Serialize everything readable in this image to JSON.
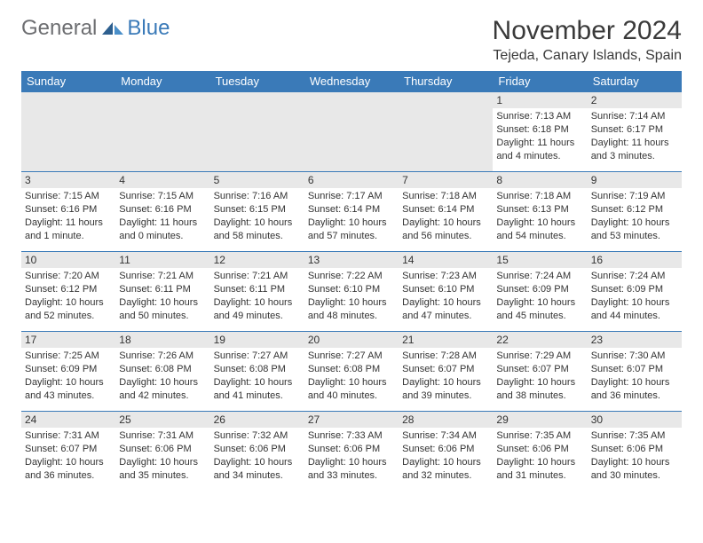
{
  "logo": {
    "general": "General",
    "blue": "Blue"
  },
  "header": {
    "month": "November 2024",
    "location": "Tejeda, Canary Islands, Spain"
  },
  "colors": {
    "accent": "#3a7ab8",
    "header_text": "#ffffff",
    "daynum_bg": "#e8e8e8",
    "text": "#333333",
    "logo_gray": "#6d6e71"
  },
  "dayNames": [
    "Sunday",
    "Monday",
    "Tuesday",
    "Wednesday",
    "Thursday",
    "Friday",
    "Saturday"
  ],
  "weeks": [
    [
      null,
      null,
      null,
      null,
      null,
      {
        "n": "1",
        "sr": "7:13 AM",
        "ss": "6:18 PM",
        "dl": "11 hours and 4 minutes."
      },
      {
        "n": "2",
        "sr": "7:14 AM",
        "ss": "6:17 PM",
        "dl": "11 hours and 3 minutes."
      }
    ],
    [
      {
        "n": "3",
        "sr": "7:15 AM",
        "ss": "6:16 PM",
        "dl": "11 hours and 1 minute."
      },
      {
        "n": "4",
        "sr": "7:15 AM",
        "ss": "6:16 PM",
        "dl": "11 hours and 0 minutes."
      },
      {
        "n": "5",
        "sr": "7:16 AM",
        "ss": "6:15 PM",
        "dl": "10 hours and 58 minutes."
      },
      {
        "n": "6",
        "sr": "7:17 AM",
        "ss": "6:14 PM",
        "dl": "10 hours and 57 minutes."
      },
      {
        "n": "7",
        "sr": "7:18 AM",
        "ss": "6:14 PM",
        "dl": "10 hours and 56 minutes."
      },
      {
        "n": "8",
        "sr": "7:18 AM",
        "ss": "6:13 PM",
        "dl": "10 hours and 54 minutes."
      },
      {
        "n": "9",
        "sr": "7:19 AM",
        "ss": "6:12 PM",
        "dl": "10 hours and 53 minutes."
      }
    ],
    [
      {
        "n": "10",
        "sr": "7:20 AM",
        "ss": "6:12 PM",
        "dl": "10 hours and 52 minutes."
      },
      {
        "n": "11",
        "sr": "7:21 AM",
        "ss": "6:11 PM",
        "dl": "10 hours and 50 minutes."
      },
      {
        "n": "12",
        "sr": "7:21 AM",
        "ss": "6:11 PM",
        "dl": "10 hours and 49 minutes."
      },
      {
        "n": "13",
        "sr": "7:22 AM",
        "ss": "6:10 PM",
        "dl": "10 hours and 48 minutes."
      },
      {
        "n": "14",
        "sr": "7:23 AM",
        "ss": "6:10 PM",
        "dl": "10 hours and 47 minutes."
      },
      {
        "n": "15",
        "sr": "7:24 AM",
        "ss": "6:09 PM",
        "dl": "10 hours and 45 minutes."
      },
      {
        "n": "16",
        "sr": "7:24 AM",
        "ss": "6:09 PM",
        "dl": "10 hours and 44 minutes."
      }
    ],
    [
      {
        "n": "17",
        "sr": "7:25 AM",
        "ss": "6:09 PM",
        "dl": "10 hours and 43 minutes."
      },
      {
        "n": "18",
        "sr": "7:26 AM",
        "ss": "6:08 PM",
        "dl": "10 hours and 42 minutes."
      },
      {
        "n": "19",
        "sr": "7:27 AM",
        "ss": "6:08 PM",
        "dl": "10 hours and 41 minutes."
      },
      {
        "n": "20",
        "sr": "7:27 AM",
        "ss": "6:08 PM",
        "dl": "10 hours and 40 minutes."
      },
      {
        "n": "21",
        "sr": "7:28 AM",
        "ss": "6:07 PM",
        "dl": "10 hours and 39 minutes."
      },
      {
        "n": "22",
        "sr": "7:29 AM",
        "ss": "6:07 PM",
        "dl": "10 hours and 38 minutes."
      },
      {
        "n": "23",
        "sr": "7:30 AM",
        "ss": "6:07 PM",
        "dl": "10 hours and 36 minutes."
      }
    ],
    [
      {
        "n": "24",
        "sr": "7:31 AM",
        "ss": "6:07 PM",
        "dl": "10 hours and 36 minutes."
      },
      {
        "n": "25",
        "sr": "7:31 AM",
        "ss": "6:06 PM",
        "dl": "10 hours and 35 minutes."
      },
      {
        "n": "26",
        "sr": "7:32 AM",
        "ss": "6:06 PM",
        "dl": "10 hours and 34 minutes."
      },
      {
        "n": "27",
        "sr": "7:33 AM",
        "ss": "6:06 PM",
        "dl": "10 hours and 33 minutes."
      },
      {
        "n": "28",
        "sr": "7:34 AM",
        "ss": "6:06 PM",
        "dl": "10 hours and 32 minutes."
      },
      {
        "n": "29",
        "sr": "7:35 AM",
        "ss": "6:06 PM",
        "dl": "10 hours and 31 minutes."
      },
      {
        "n": "30",
        "sr": "7:35 AM",
        "ss": "6:06 PM",
        "dl": "10 hours and 30 minutes."
      }
    ]
  ],
  "labels": {
    "sunrise": "Sunrise:",
    "sunset": "Sunset:",
    "daylight": "Daylight:"
  }
}
